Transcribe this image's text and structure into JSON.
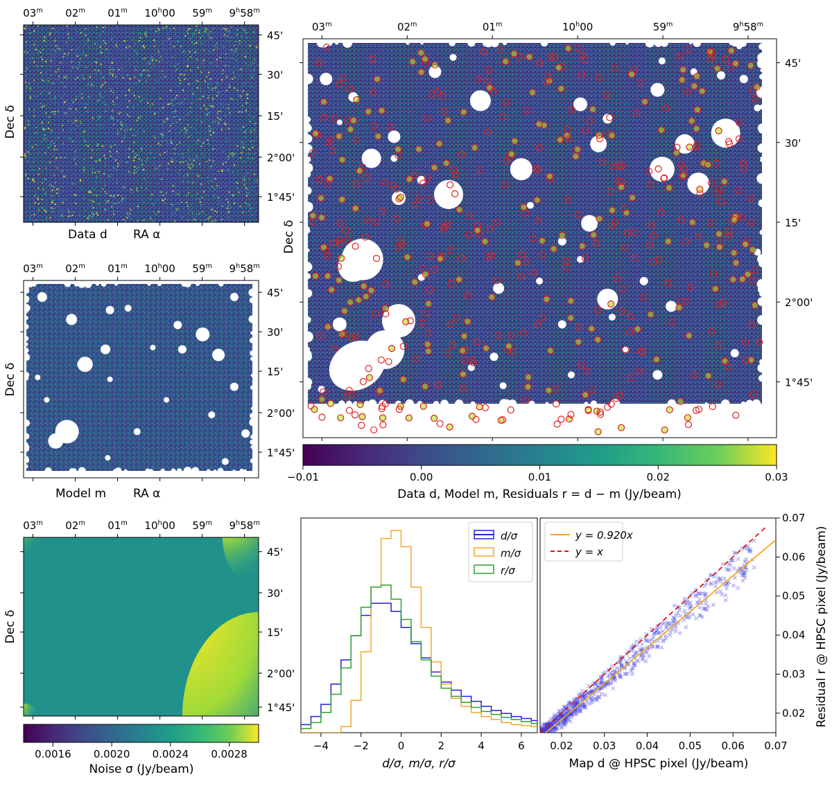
{
  "ra_ticks": [
    "03",
    "02",
    "01",
    "10",
    "59",
    "9",
    "58"
  ],
  "ra_ticks_sup": [
    "m",
    "m",
    "m",
    "h",
    "m",
    "h",
    "m"
  ],
  "ra_tick_labels": [
    {
      "main": "03",
      "sup": "m",
      "tail": ""
    },
    {
      "main": "02",
      "sup": "m",
      "tail": ""
    },
    {
      "main": "01",
      "sup": "m",
      "tail": ""
    },
    {
      "main": "10",
      "sup": "h",
      "tail": "00"
    },
    {
      "main": "59",
      "sup": "m",
      "tail": ""
    },
    {
      "main": "9",
      "sup": "h",
      "tail": "58",
      "sup2": "m"
    }
  ],
  "dec_ticks": [
    "45'",
    "30'",
    "15'",
    "2°00'",
    "1°45'"
  ],
  "panels": {
    "data_map": {
      "xlabel_left": "Data d",
      "xlabel_right": "RA α",
      "ylabel": "Dec δ"
    },
    "model_map": {
      "xlabel_left": "Model m",
      "xlabel_right": "RA α",
      "ylabel": "Dec δ"
    },
    "residual_map": {
      "ylabel": "Dec δ"
    },
    "noise_map": {
      "ylabel": "Dec δ"
    }
  },
  "colorbar_main": {
    "ticks": [
      "−0.01",
      "0.00",
      "0.01",
      "0.02",
      "0.03"
    ],
    "label": "Data d, Model m, Residuals r = d − m (Jy/beam)",
    "range": [
      -0.01,
      0.03
    ]
  },
  "colorbar_noise": {
    "ticks": [
      "0.0016",
      "0.0020",
      "0.0024",
      "0.0028"
    ],
    "label": "Noise σ (Jy/beam)",
    "range": [
      0.0014,
      0.003
    ]
  },
  "colors": {
    "d": "#1f1fe0",
    "m": "#f5a623",
    "r": "#2ca02c",
    "fit": "#f5a623",
    "identity": "#e01010",
    "scatter": "#3a3ae0",
    "circles": "#e02020"
  },
  "chart_data": [
    {
      "type": "histogram",
      "xlabel": "d/σ, m/σ, r/σ",
      "xlim": [
        -5,
        6.8
      ],
      "xticks": [
        "−4",
        "−2",
        "0",
        "2",
        "4",
        "6"
      ],
      "legend": [
        "d/σ",
        "m/σ",
        "r/σ"
      ],
      "legend_placement": "top-right",
      "series": [
        {
          "name": "d/σ",
          "x": [
            -5,
            -4.5,
            -4,
            -3.5,
            -3,
            -2.5,
            -2,
            -1.5,
            -1,
            -0.5,
            0,
            0.5,
            1,
            1.5,
            2,
            2.5,
            3,
            3.5,
            4,
            4.5,
            5,
            5.5,
            6,
            6.5
          ],
          "values": [
            0.04,
            0.08,
            0.14,
            0.24,
            0.36,
            0.48,
            0.58,
            0.64,
            0.64,
            0.6,
            0.52,
            0.44,
            0.37,
            0.3,
            0.25,
            0.21,
            0.18,
            0.155,
            0.13,
            0.11,
            0.095,
            0.08,
            0.07,
            0.06
          ]
        },
        {
          "name": "m/σ",
          "x": [
            -5,
            -4.5,
            -4,
            -3.5,
            -3,
            -2.5,
            -2,
            -1.5,
            -1,
            -0.5,
            0,
            0.5,
            1,
            1.5,
            2,
            2.5,
            3,
            3.5,
            4,
            4.5,
            5,
            5.5,
            6,
            6.5
          ],
          "values": [
            0,
            0,
            0,
            0,
            0.03,
            0.16,
            0.4,
            0.72,
            0.96,
            1.0,
            0.92,
            0.72,
            0.52,
            0.35,
            0.24,
            0.17,
            0.13,
            0.1,
            0.08,
            0.065,
            0.05,
            0.04,
            0.035,
            0.03
          ]
        },
        {
          "name": "r/σ",
          "x": [
            -5,
            -4.5,
            -4,
            -3.5,
            -3,
            -2.5,
            -2,
            -1.5,
            -1,
            -0.5,
            0,
            0.5,
            1,
            1.5,
            2,
            2.5,
            3,
            3.5,
            4,
            4.5,
            5,
            5.5,
            6,
            6.5
          ],
          "values": [
            0.02,
            0.05,
            0.1,
            0.19,
            0.32,
            0.48,
            0.62,
            0.72,
            0.73,
            0.66,
            0.56,
            0.45,
            0.36,
            0.28,
            0.22,
            0.18,
            0.15,
            0.125,
            0.105,
            0.09,
            0.075,
            0.065,
            0.055,
            0.045
          ]
        }
      ]
    },
    {
      "type": "scatter",
      "xlabel": "Map d @ HPSC pixel (Jy/beam)",
      "ylabel": "Residual r @ HPSC pixel (Jy/beam)",
      "xlim": [
        0.015,
        0.07
      ],
      "ylim": [
        0.015,
        0.07
      ],
      "xticks": [
        "0.02",
        "0.03",
        "0.04",
        "0.05",
        "0.06",
        "0.07"
      ],
      "yticks": [
        "0.02",
        "0.03",
        "0.04",
        "0.05",
        "0.06",
        "0.07"
      ],
      "legend": [
        "y = 0.920x",
        "y = x"
      ],
      "legend_placement": "top-left",
      "fit_slope": 0.92,
      "n_points": 800
    }
  ]
}
